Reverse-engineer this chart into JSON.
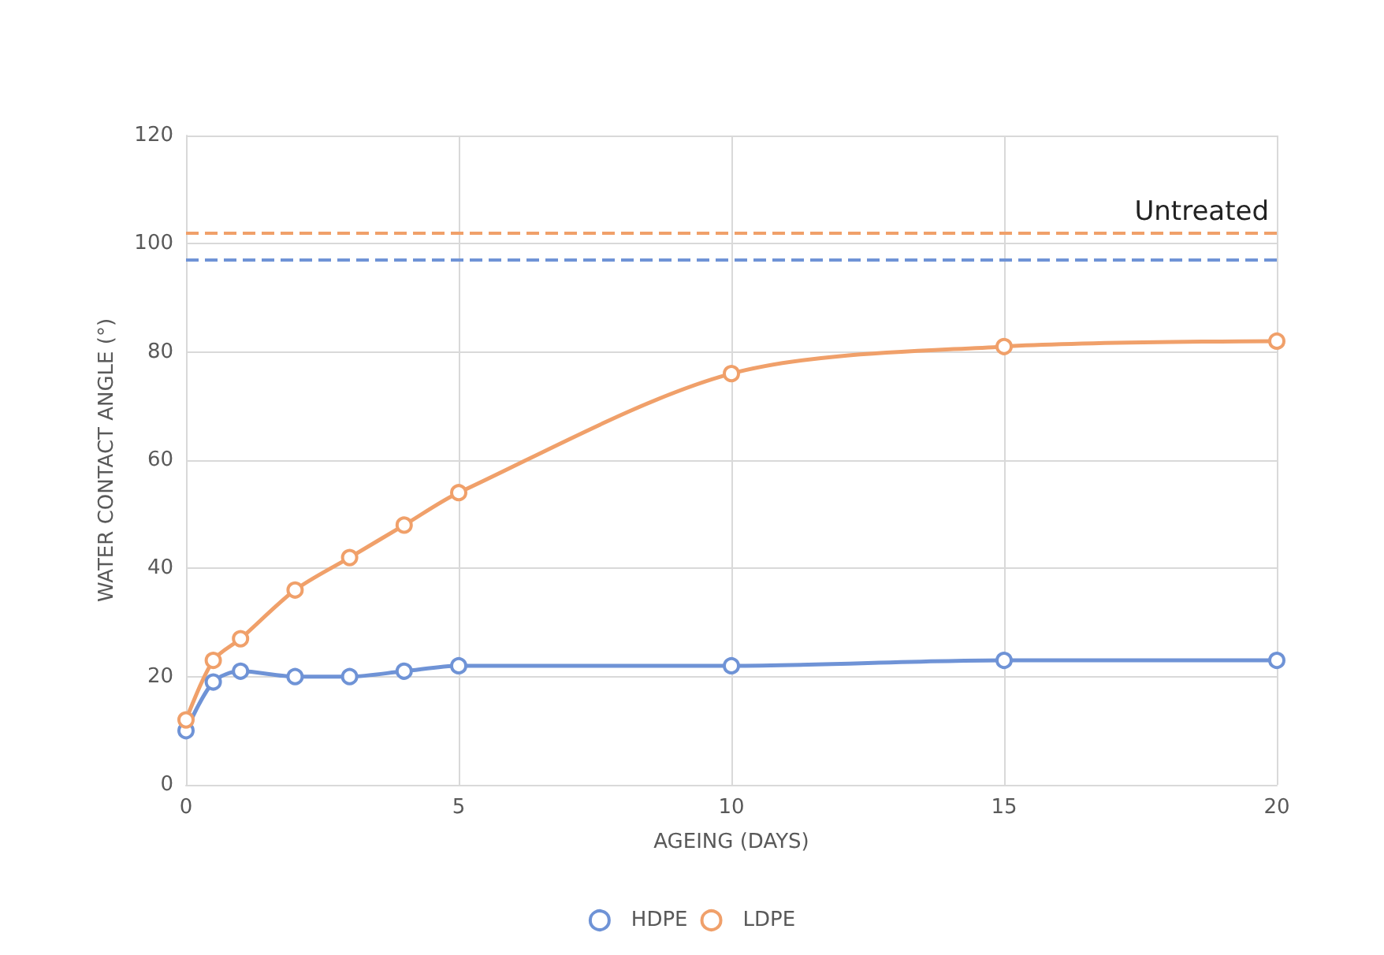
{
  "chart_data": {
    "type": "line",
    "xlabel": "AGEING (DAYS)",
    "ylabel": "WATER CONTACT ANGLE (°)",
    "x": [
      0,
      0.5,
      1,
      2,
      3,
      4,
      5,
      10,
      15,
      20
    ],
    "series": [
      {
        "name": "HDPE",
        "color": "#6f93d6",
        "values": [
          10,
          19,
          21,
          20,
          20,
          21,
          22,
          22,
          23,
          23
        ]
      },
      {
        "name": "LDPE",
        "color": "#f0a06a",
        "values": [
          12,
          23,
          27,
          36,
          42,
          48,
          54,
          76,
          81,
          82
        ]
      }
    ],
    "ref_lines": [
      {
        "axis": "y",
        "value": 102,
        "label": "Untreated",
        "color": "#f0a06a",
        "line_style": "dashed"
      },
      {
        "axis": "y",
        "value": 97,
        "color": "#6f93d6",
        "line_style": "dashed"
      }
    ],
    "xlim": [
      0,
      20
    ],
    "xticks": [
      0,
      5,
      10,
      15,
      20
    ],
    "ylim": [
      0,
      120
    ],
    "yticks": [
      0,
      20,
      40,
      60,
      80,
      100,
      120
    ],
    "grid": true,
    "legend": "bottom",
    "marker": "circle",
    "line_style": "solid"
  }
}
